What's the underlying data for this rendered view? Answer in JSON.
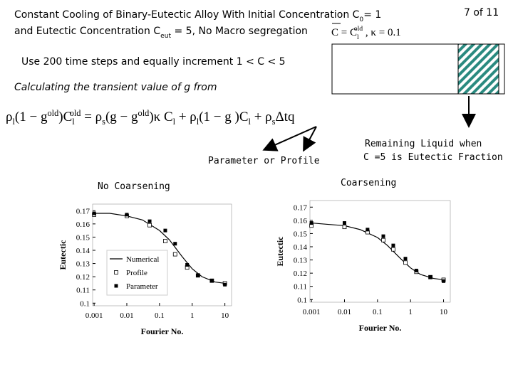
{
  "page_number": "7 of 11",
  "header": {
    "line1": [
      {
        "t": "Constant Cooling of Binary-Eutectic Alloy With Initial Concentration C",
        "pos": "base"
      },
      {
        "t": "0",
        "pos": "sub"
      },
      {
        "t": "= 1",
        "pos": "base"
      }
    ],
    "line2": [
      {
        "t": "and Eutectic Concentration C",
        "pos": "base"
      },
      {
        "t": "eut",
        "pos": "sub"
      },
      {
        "t": " = 5,  No Macro segregation",
        "pos": "base"
      }
    ],
    "condition": [
      {
        "t": "C = C",
        "pos": "base"
      },
      {
        "t": "l",
        "pos": "sub"
      },
      {
        "t": "old",
        "pos": "sup"
      },
      {
        "t": " ,  κ = 0.1",
        "pos": "base"
      }
    ]
  },
  "steps_note": "Use 200 time steps and equally increment  1 < C < 5",
  "transient_note": "Calculating the transient value of g from",
  "equation": [
    {
      "t": "ρ",
      "pos": "base"
    },
    {
      "t": "l",
      "pos": "sub"
    },
    {
      "t": "(1 − g",
      "pos": "base"
    },
    {
      "t": "old",
      "pos": "sup"
    },
    {
      "t": ")C",
      "pos": "base"
    },
    {
      "t": "l",
      "pos": "sub"
    },
    {
      "t": "old",
      "pos": "sup"
    },
    {
      "t": " = ρ",
      "pos": "base"
    },
    {
      "t": "s",
      "pos": "sub"
    },
    {
      "t": "(g − g",
      "pos": "base"
    },
    {
      "t": "old",
      "pos": "sup"
    },
    {
      "t": ")κ  C",
      "pos": "base"
    },
    {
      "t": "l",
      "pos": "sub"
    },
    {
      "t": "  +   ρ",
      "pos": "base"
    },
    {
      "t": "l",
      "pos": "sub"
    },
    {
      "t": "(1 − g )C",
      "pos": "base"
    },
    {
      "t": "l",
      "pos": "sub"
    },
    {
      "t": "  +   ρ",
      "pos": "base"
    },
    {
      "t": "s",
      "pos": "sub"
    },
    {
      "t": "Δtq",
      "pos": "base"
    }
  ],
  "arrow_label": "Parameter  or  Profile",
  "remaining_note": [
    "Remaining Liquid  when",
    "C =5 is Eutectic Fraction"
  ],
  "panel_titles": [
    "No Coarsening",
    "Coarsening"
  ],
  "chart_data": [
    {
      "type": "line",
      "x_label": "Fourier No.",
      "y_label": "Eutectic",
      "xscale": "log",
      "xlim": [
        0.0009,
        16
      ],
      "ylim": [
        0.098,
        0.175
      ],
      "xticks": [
        0.001,
        0.01,
        0.1,
        1,
        10
      ],
      "yticks": [
        0.1,
        0.11,
        0.12,
        0.13,
        0.14,
        0.15,
        0.16,
        0.17
      ],
      "legend": "lower left",
      "series": [
        {
          "name": "Numerical",
          "marker": "none",
          "color": "#000000",
          "x": [
            0.001,
            0.003,
            0.01,
            0.03,
            0.1,
            0.2,
            0.5,
            1,
            2,
            5,
            10
          ],
          "values": [
            0.168,
            0.168,
            0.166,
            0.163,
            0.155,
            0.148,
            0.135,
            0.126,
            0.12,
            0.116,
            0.115
          ]
        },
        {
          "name": "Profile",
          "marker": "open-square",
          "color": "#000000",
          "x": [
            0.001,
            0.01,
            0.05,
            0.15,
            0.3,
            0.7,
            1.5,
            4,
            10
          ],
          "values": [
            0.167,
            0.166,
            0.159,
            0.147,
            0.137,
            0.127,
            0.121,
            0.117,
            0.115
          ]
        },
        {
          "name": "Parameter",
          "marker": "filled-square",
          "color": "#000000",
          "x": [
            0.001,
            0.01,
            0.05,
            0.15,
            0.3,
            0.7,
            1.5,
            4,
            10
          ],
          "values": [
            0.168,
            0.167,
            0.162,
            0.155,
            0.145,
            0.129,
            0.121,
            0.117,
            0.114
          ]
        }
      ]
    },
    {
      "type": "line",
      "x_label": "Fourier No.",
      "y_label": "Eutectic",
      "xscale": "log",
      "xlim": [
        0.0009,
        16
      ],
      "ylim": [
        0.098,
        0.175
      ],
      "xticks": [
        0.001,
        0.01,
        0.1,
        1,
        10
      ],
      "yticks": [
        0.1,
        0.11,
        0.12,
        0.13,
        0.14,
        0.15,
        0.16,
        0.17
      ],
      "series": [
        {
          "marker": "none",
          "color": "#000000",
          "x": [
            0.001,
            0.003,
            0.01,
            0.03,
            0.1,
            0.2,
            0.5,
            1,
            2,
            5,
            10
          ],
          "values": [
            0.158,
            0.157,
            0.156,
            0.153,
            0.147,
            0.141,
            0.131,
            0.124,
            0.119,
            0.116,
            0.115
          ]
        },
        {
          "marker": "open-square",
          "color": "#000000",
          "x": [
            0.001,
            0.01,
            0.05,
            0.15,
            0.3,
            0.7,
            1.5,
            4,
            10
          ],
          "values": [
            0.156,
            0.155,
            0.151,
            0.145,
            0.138,
            0.128,
            0.121,
            0.117,
            0.115
          ]
        },
        {
          "marker": "filled-square",
          "color": "#000000",
          "x": [
            0.001,
            0.01,
            0.05,
            0.15,
            0.3,
            0.7,
            1.5,
            4,
            10
          ],
          "values": [
            0.158,
            0.158,
            0.153,
            0.148,
            0.141,
            0.131,
            0.122,
            0.117,
            0.114
          ]
        }
      ]
    }
  ]
}
